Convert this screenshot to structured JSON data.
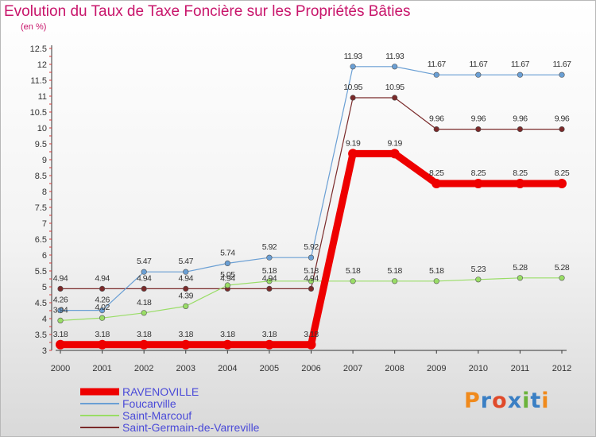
{
  "title": "Evolution du Taux de Taxe Foncière sur les Propriétés Bâties",
  "subtitle": "(en %)",
  "logo_text": "Proxiti",
  "chart_data": {
    "type": "line",
    "x": [
      "2000",
      "2001",
      "2002",
      "2003",
      "2004",
      "2005",
      "2006",
      "2007",
      "2008",
      "2009",
      "2010",
      "2011",
      "2012"
    ],
    "ylim": [
      3,
      12.5
    ],
    "yticks": [
      "3",
      "3.5",
      "4",
      "4.5",
      "5",
      "5.5",
      "6",
      "6.5",
      "7",
      "7.5",
      "8",
      "8.5",
      "9",
      "9.5",
      "10",
      "10.5",
      "11",
      "11.5",
      "12",
      "12.5"
    ],
    "grid": false,
    "legend_position": "bottom-left",
    "series": [
      {
        "name": "RAVENOVILLE",
        "color": "#ee0000",
        "values": [
          3.18,
          3.18,
          3.18,
          3.18,
          3.18,
          3.18,
          3.18,
          9.19,
          9.19,
          8.25,
          8.25,
          8.25,
          8.25
        ],
        "labels": [
          "3.18",
          "3.18",
          "3.18",
          "3.18",
          "3.18",
          "3.18",
          "3.18",
          "9.19",
          "9.19",
          "8.25",
          "8.25",
          "8.25",
          "8.25"
        ]
      },
      {
        "name": "Foucarville",
        "color": "#6a9fd4",
        "values": [
          4.26,
          4.26,
          5.47,
          5.47,
          5.74,
          5.92,
          5.92,
          11.93,
          11.93,
          11.67,
          11.67,
          11.67,
          11.67
        ],
        "labels": [
          "4.26",
          "4.26",
          "5.47",
          "5.47",
          "5.74",
          "5.92",
          "5.92",
          "11.93",
          "11.93",
          "11.67",
          "11.67",
          "11.67",
          "11.67"
        ]
      },
      {
        "name": "Saint-Marcouf",
        "color": "#99dd66",
        "values": [
          3.94,
          4.02,
          4.18,
          4.39,
          5.05,
          5.18,
          5.18,
          5.18,
          5.18,
          5.18,
          5.23,
          5.28,
          5.28
        ],
        "labels": [
          "3.94",
          "4.02",
          "4.18",
          "4.39",
          "5.05",
          "5.18",
          "5.18",
          "5.18",
          "5.18",
          "5.18",
          "5.23",
          "5.28",
          "5.28"
        ]
      },
      {
        "name": "Saint-Germain-de-Varreville",
        "color": "#7a2a2a",
        "values": [
          4.94,
          4.94,
          4.94,
          4.94,
          4.94,
          4.94,
          4.94,
          10.95,
          10.95,
          9.96,
          9.96,
          9.96,
          9.96
        ],
        "labels": [
          "4.94",
          "4.94",
          "4.94",
          "4.94",
          "4.94",
          "4.94",
          "4.94",
          "10.95",
          "10.95",
          "9.96",
          "9.96",
          "9.96",
          "9.96"
        ]
      }
    ]
  }
}
